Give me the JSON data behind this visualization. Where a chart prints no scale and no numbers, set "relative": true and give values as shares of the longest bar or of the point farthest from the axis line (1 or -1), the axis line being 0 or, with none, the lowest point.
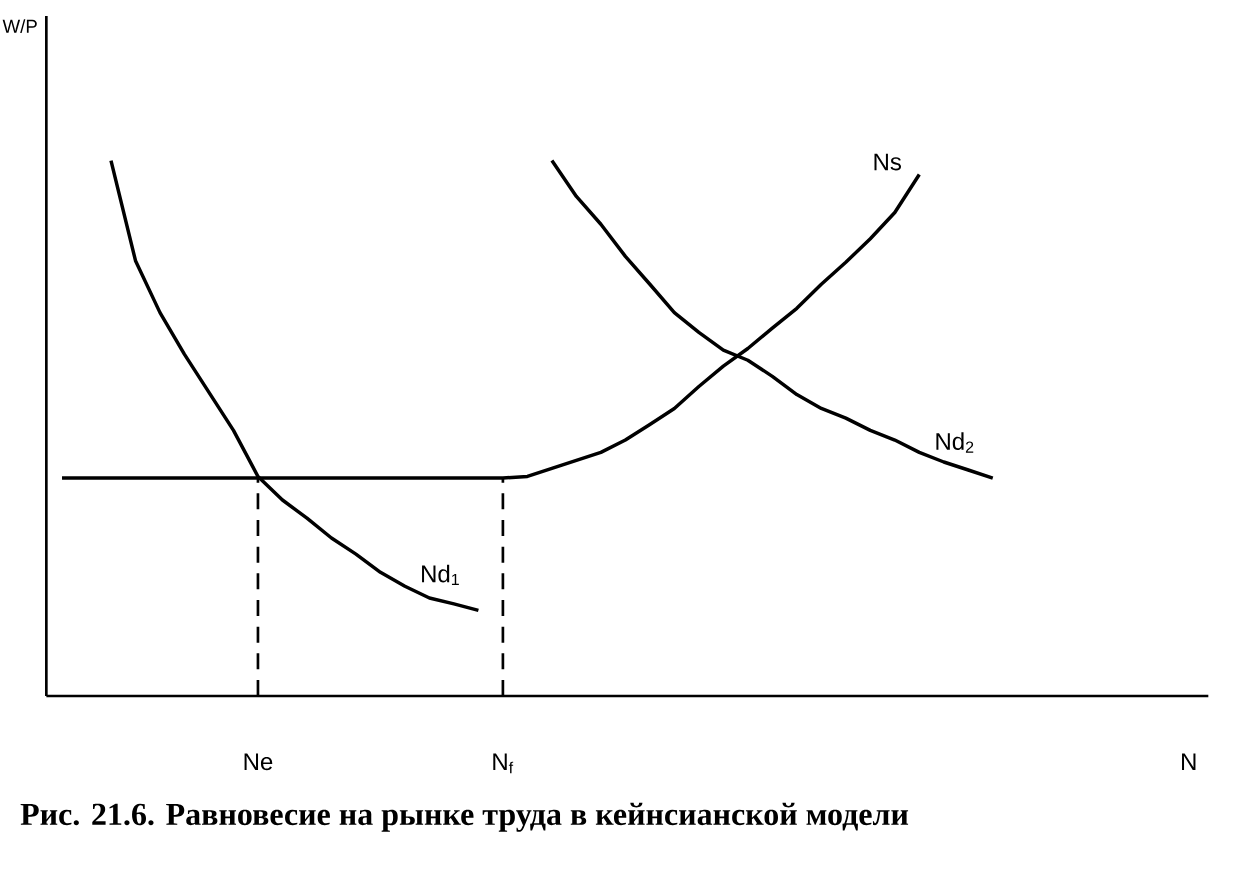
{
  "chart_data": {
    "type": "line",
    "relative": true,
    "annotations": [
      "W/P",
      "**Рис. 21.6. Равновесие на рынке труда в кейнсианской модели**"
    ],
    "categories": [
      null,
      null,
      null,
      null,
      null,
      null,
      null,
      null,
      "Ne",
      null,
      null,
      null,
      null,
      null,
      null,
      null,
      null,
      null,
      "N$_{f}$",
      null,
      null,
      null,
      null,
      null,
      null,
      null,
      null,
      null,
      null,
      null,
      null,
      null,
      null,
      null,
      null,
      null,
      null,
      null,
      null,
      null,
      null,
      null,
      null,
      null,
      null,
      null,
      "N"
    ],
    "marker": "none",
    "series": [
      {
        "name": "Nd$_{1}$",
        "color": "#000000",
        "line_style": "solid",
        "values": [
          null,
          null,
          1.0,
          0.813,
          0.716,
          0.638,
          0.567,
          0.496,
          0.41,
          0.366,
          0.332,
          0.295,
          0.265,
          0.231,
          0.205,
          0.183,
          0.172,
          0.16,
          null,
          null,
          null,
          null,
          null,
          null,
          null,
          null,
          null,
          null,
          null,
          null,
          null,
          null,
          null,
          null,
          null,
          null,
          null,
          null,
          null,
          null,
          null,
          null,
          null,
          null,
          null,
          null,
          null
        ]
      },
      {
        "name": "Ns",
        "color": "#000000",
        "line_style": "solid",
        "values": [
          0.407,
          0.407,
          0.407,
          0.407,
          0.407,
          0.407,
          0.407,
          0.407,
          0.407,
          0.407,
          0.407,
          0.407,
          0.407,
          0.407,
          0.407,
          0.407,
          0.407,
          0.407,
          0.407,
          0.41,
          0.425,
          0.44,
          0.455,
          0.478,
          0.507,
          0.537,
          0.578,
          0.616,
          0.649,
          0.687,
          0.724,
          0.769,
          0.81,
          0.854,
          0.903,
          0.974,
          null,
          null,
          null,
          null,
          null,
          null,
          null,
          null,
          null,
          null,
          null
        ]
      },
      {
        "name": "Nd$_{2}$",
        "color": "#000000",
        "line_style": "solid",
        "values": [
          null,
          null,
          null,
          null,
          null,
          null,
          null,
          null,
          null,
          null,
          null,
          null,
          null,
          null,
          null,
          null,
          null,
          null,
          null,
          null,
          1.0,
          0.933,
          0.881,
          0.821,
          0.769,
          0.716,
          0.679,
          0.646,
          0.627,
          0.597,
          0.563,
          0.537,
          0.519,
          0.496,
          0.478,
          0.455,
          0.437,
          0.422,
          0.407,
          null,
          null,
          null,
          null,
          null,
          null,
          null,
          null
        ]
      },
      {
        "color": "#000000",
        "line_style": "dashed",
        "x": [
          "Ne",
          "Ne"
        ],
        "values": [
          0,
          0.41
        ]
      },
      {
        "color": "#000000",
        "line_style": "dashed",
        "x": [
          "N$_{f}$",
          "N$_{f}$"
        ],
        "values": [
          0,
          0.407
        ]
      }
    ]
  }
}
